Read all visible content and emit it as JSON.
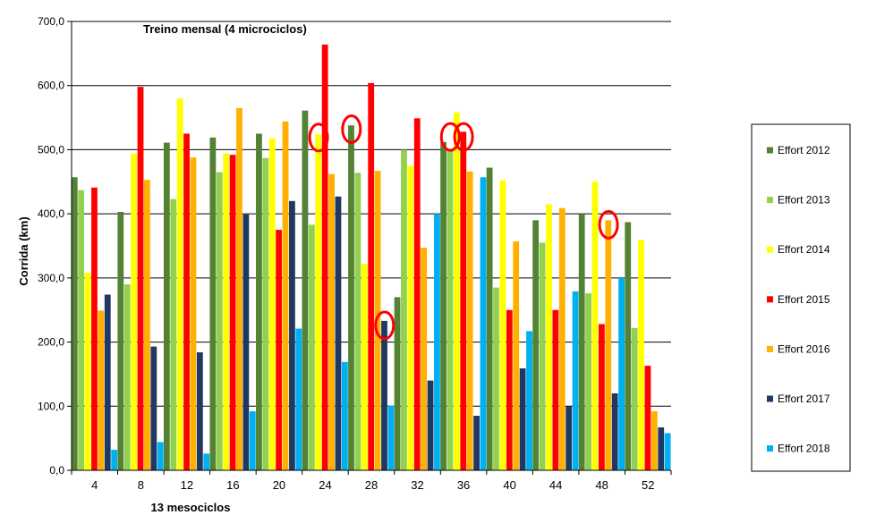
{
  "chart_data": {
    "type": "bar",
    "title": "Treino mensal (4 microciclos)",
    "xlabel": "13 mesociclos",
    "ylabel": "Corrida (km)",
    "ylim": [
      0,
      700
    ],
    "yticks": [
      "0,0",
      "100,0",
      "200,0",
      "300,0",
      "400,0",
      "500,0",
      "600,0",
      "700,0"
    ],
    "grid": true,
    "legend_position": "right",
    "categories": [
      "4",
      "8",
      "12",
      "16",
      "20",
      "24",
      "28",
      "32",
      "36",
      "40",
      "44",
      "48",
      "52"
    ],
    "series": [
      {
        "name": "Effort 2012",
        "color": "#548235",
        "values": [
          457,
          403,
          511,
          519,
          525,
          561,
          538,
          270,
          512,
          472,
          390,
          400,
          387
        ]
      },
      {
        "name": "Effort 2013",
        "color": "#92D050",
        "values": [
          437,
          290,
          423,
          465,
          487,
          383,
          464,
          500,
          500,
          285,
          355,
          276,
          222
        ]
      },
      {
        "name": "Effort 2014",
        "color": "#FFFF00",
        "values": [
          308,
          494,
          580,
          494,
          518,
          524,
          322,
          475,
          558,
          452,
          415,
          450,
          359
        ]
      },
      {
        "name": "Effort 2015",
        "color": "#FF0000",
        "values": [
          441,
          598,
          525,
          492,
          375,
          664,
          604,
          549,
          528,
          250,
          250,
          228,
          163
        ]
      },
      {
        "name": "Effort 2016",
        "color": "#FFB000",
        "values": [
          249,
          453,
          488,
          565,
          544,
          462,
          467,
          347,
          466,
          357,
          409,
          390,
          92
        ]
      },
      {
        "name": "Effort 2017",
        "color": "#1F3864",
        "values": [
          274,
          193,
          184,
          399,
          420,
          427,
          233,
          140,
          85,
          159,
          100,
          120,
          67
        ]
      },
      {
        "name": "Effort 2018",
        "color": "#00B0F0",
        "values": [
          32,
          44,
          26,
          92,
          221,
          169,
          101,
          400,
          457,
          217,
          279,
          300,
          58
        ]
      }
    ],
    "annotations": [
      {
        "type": "circle",
        "category": "24",
        "series": "Effort 2014",
        "value": 519
      },
      {
        "type": "circle",
        "category": "28",
        "series": "Effort 2012",
        "value": 532
      },
      {
        "type": "circle",
        "category": "28",
        "series": "Effort 2017",
        "value": 226
      },
      {
        "type": "circle",
        "category": "36",
        "series": "Effort 2013",
        "value": 520
      },
      {
        "type": "circle",
        "category": "36",
        "series": "Effort 2015",
        "value": 520
      },
      {
        "type": "circle",
        "category": "48",
        "series": "Effort 2016",
        "value": 383
      }
    ],
    "annotation_color": "#FF0000"
  }
}
